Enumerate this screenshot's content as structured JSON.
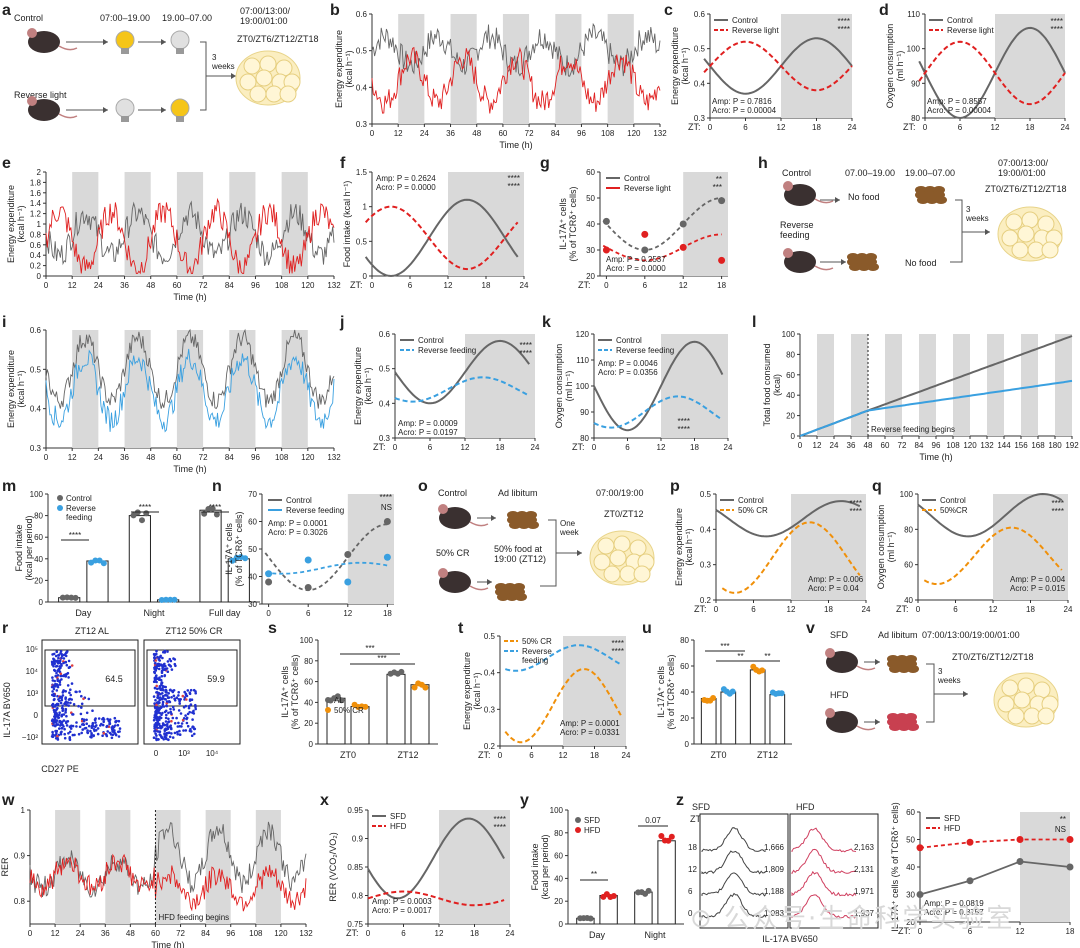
{
  "colors": {
    "gray": "#666666",
    "red": "#e02020",
    "blue": "#3aa0e0",
    "orange": "#f0900a",
    "shade": "#d9d9d9",
    "pink": "#d04060"
  },
  "panels": {
    "a": {
      "label": "a",
      "control": "Control",
      "reverse": "Reverse light",
      "time1": "07:00–19.00",
      "time2": "19.00–07.00",
      "weeks": "3\nweeks",
      "sched": "07:00/13:00/\n19:00/01:00",
      "zt": "ZT0/ZT6/ZT12/ZT18"
    },
    "h": {
      "label": "h",
      "control": "Control",
      "reverse": "Reverse\nfeeding",
      "time1": "07.00–19.00",
      "time2": "19.00–07.00",
      "nofood": "No food",
      "weeks": "3\nweeks",
      "sched": "07:00/13:00/\n19:00/01:00",
      "zt": "ZT0/ZT6/ZT12/ZT18"
    },
    "o": {
      "label": "o",
      "control": "Control",
      "adlib": "Ad libitum",
      "cr": "50% CR",
      "crtext": "50% food at\n19:00 (ZT12)",
      "week": "One\nweek",
      "sched": "07:00/19:00",
      "zt": "ZT0/ZT12"
    },
    "v": {
      "label": "v",
      "sfd": "SFD",
      "hfd": "HFD",
      "adlib": "Ad libitum",
      "weeks": "3\nweeks",
      "sched": "07:00/13:00/19:00/01:00",
      "zt": "ZT0/ZT6/ZT12/ZT18"
    },
    "r": {
      "label": "r",
      "al": "ZT12 AL",
      "cr": "ZT12 50% CR",
      "v1": "64.5",
      "v2": "59.9",
      "ylabel": "IL-17A BV650",
      "xlabel": "CD27 PE"
    },
    "z": {
      "label": "z",
      "sfd": "SFD",
      "hfd": "HFD",
      "zt": "ZT:",
      "rows": [
        "18",
        "12",
        "6",
        "0"
      ],
      "sfdvals": [
        "1,666",
        "1,809",
        "1,188",
        "1,083"
      ],
      "hfdvals": [
        "2,163",
        "2,131",
        "1,971",
        "1,937"
      ],
      "xlabel": "IL-17A BV650"
    }
  },
  "chart_data": [
    {
      "id": "b",
      "type": "line",
      "ylabel": "Energy expenditure\n(kcal h⁻¹)",
      "xlabel": "Time (h)",
      "xlim": [
        0,
        132
      ],
      "ylim": [
        0.3,
        0.6
      ],
      "xticks": [
        0,
        12,
        24,
        36,
        48,
        60,
        72,
        84,
        96,
        108,
        120,
        132
      ],
      "yticks": [
        0.3,
        0.4,
        0.5,
        0.6
      ]
    },
    {
      "id": "c",
      "type": "line",
      "ylabel": "Energy expenditure\n(kcal h⁻¹)",
      "legend": [
        "Control",
        "Reverse light"
      ],
      "stats": "Amp: P = 0.7816\nAcro: P = 0.00004",
      "ylim": [
        0.3,
        0.6
      ],
      "yticks": [
        0.3,
        0.4,
        0.5,
        0.6
      ],
      "xticks": [
        0,
        6,
        12,
        18,
        24
      ]
    },
    {
      "id": "d",
      "type": "line",
      "ylabel": "Oxygen consumption\n(ml h⁻¹)",
      "legend": [
        "Control",
        "Reverse light"
      ],
      "stats": "Amp: P = 0.8557\nAcro: P = 0.00004",
      "ylim": [
        80,
        110
      ],
      "yticks": [
        80,
        90,
        100,
        110
      ],
      "xticks": [
        0,
        6,
        12,
        18,
        24
      ]
    },
    {
      "id": "e",
      "type": "line",
      "ylabel": "Energy expenditure\n(kcal h⁻¹)",
      "xlabel": "Time (h)",
      "xlim": [
        0,
        132
      ],
      "ylim": [
        0,
        2.0
      ],
      "xticks": [
        0,
        12,
        24,
        36,
        48,
        60,
        72,
        84,
        96,
        108,
        120,
        132
      ],
      "yticks": [
        0,
        0.2,
        0.4,
        0.6,
        0.8,
        1.0,
        1.2,
        1.4,
        1.6,
        1.8,
        2.0
      ]
    },
    {
      "id": "f",
      "type": "line",
      "ylabel": "Food intake (kcal h⁻¹)",
      "stats": "Amp: P = 0.2624\nAcro: P = 0.0000",
      "ylim": [
        0,
        1.5
      ],
      "yticks": [
        0,
        0.5,
        1.0,
        1.5
      ],
      "xticks": [
        0,
        6,
        12,
        18,
        24
      ]
    },
    {
      "id": "g",
      "type": "scatter",
      "ylabel": "IL-17A⁺ cells\n(% of TCRδ⁺ cells)",
      "legend": [
        "Control",
        "Reverse light"
      ],
      "stats": "Amp: P = 0.2537\nAcro: P = 0.0000",
      "ylim": [
        20,
        60
      ],
      "yticks": [
        20,
        30,
        40,
        50,
        60
      ],
      "xticks": [
        0,
        6,
        12,
        18
      ],
      "series": [
        {
          "name": "Control",
          "values": [
            41,
            30,
            40,
            49
          ]
        },
        {
          "name": "Reverse light",
          "values": [
            30,
            36,
            31,
            26
          ]
        }
      ]
    },
    {
      "id": "i",
      "type": "line",
      "ylabel": "Energy expenditure\n(kcal h⁻¹)",
      "xlabel": "Time (h)",
      "xlim": [
        0,
        132
      ],
      "ylim": [
        0.3,
        0.6
      ],
      "xticks": [
        0,
        12,
        24,
        36,
        48,
        60,
        72,
        84,
        96,
        108,
        120,
        132
      ],
      "yticks": [
        0.3,
        0.4,
        0.5,
        0.6
      ]
    },
    {
      "id": "j",
      "type": "line",
      "ylabel": "Energy expenditure\n(kcal h⁻¹)",
      "legend": [
        "Control",
        "Reverse feeding"
      ],
      "stats": "Amp: P = 0.0009\nAcro: P = 0.0197",
      "ylim": [
        0.3,
        0.6
      ],
      "yticks": [
        0.3,
        0.4,
        0.5,
        0.6
      ],
      "xticks": [
        0,
        6,
        12,
        18,
        24
      ]
    },
    {
      "id": "k",
      "type": "line",
      "ylabel": "Oxygen consumption\n(ml h⁻¹)",
      "legend": [
        "Control",
        "Reverse feeding"
      ],
      "stats": "Amp: P = 0.0046\nAcro: P = 0.0356",
      "ylim": [
        80,
        120
      ],
      "yticks": [
        80,
        90,
        100,
        110,
        120
      ],
      "xticks": [
        0,
        6,
        12,
        18,
        24
      ]
    },
    {
      "id": "l",
      "type": "line",
      "ylabel": "Total food consumed\n(kcal)",
      "xlabel": "Time (h)",
      "annotation": "Reverse feeding begins",
      "ylim": [
        0,
        100
      ],
      "yticks": [
        0,
        20,
        40,
        60,
        80,
        100
      ],
      "xticks": [
        0,
        12,
        24,
        36,
        48,
        60,
        72,
        84,
        96,
        108,
        120,
        132,
        144,
        156,
        168,
        180,
        192
      ]
    },
    {
      "id": "m",
      "type": "bar",
      "ylabel": "Food intake\n(kcal per period)",
      "legend": [
        "Control",
        "Reverse\nfeeding"
      ],
      "categories": [
        "Day",
        "Night",
        "Full day"
      ],
      "series": [
        {
          "name": "Control",
          "values": [
            4,
            80,
            85
          ]
        },
        {
          "name": "Reverse feeding",
          "values": [
            38,
            2,
            40
          ]
        }
      ],
      "ylim": [
        0,
        100
      ],
      "yticks": [
        0,
        20,
        40,
        60,
        80,
        100
      ],
      "sig": "****"
    },
    {
      "id": "n",
      "type": "scatter",
      "ylabel": "IL-17A⁺ cells\n(% of TCRδ⁺ cells)",
      "legend": [
        "Control",
        "Reverse feeding"
      ],
      "stats": "Amp: P = 0.0001\nAcro: P = 0.3026",
      "ylim": [
        30,
        70
      ],
      "yticks": [
        30,
        40,
        50,
        60,
        70
      ],
      "xticks": [
        0,
        6,
        12,
        18
      ],
      "series": [
        {
          "name": "Control",
          "values": [
            38,
            36,
            48,
            60
          ]
        },
        {
          "name": "Reverse feeding",
          "values": [
            41,
            46,
            38,
            47
          ]
        }
      ]
    },
    {
      "id": "p",
      "type": "line",
      "ylabel": "Energy expenditure\n(kcal h⁻¹)",
      "legend": [
        "Control",
        "50% CR"
      ],
      "stats": "Amp: P = 0.006\nAcro: P = 0.04",
      "ylim": [
        0.2,
        0.5
      ],
      "yticks": [
        0.2,
        0.3,
        0.4,
        0.5
      ],
      "xticks": [
        0,
        6,
        12,
        18,
        24
      ]
    },
    {
      "id": "q",
      "type": "line",
      "ylabel": "Oxygen consumption\n(ml h⁻¹)",
      "legend": [
        "Control",
        "50%CR"
      ],
      "stats": "Amp: P = 0.004\nAcro: P = 0.015",
      "ylim": [
        40,
        100
      ],
      "yticks": [
        40,
        60,
        80,
        100
      ],
      "xticks": [
        0,
        6,
        12,
        18,
        24
      ]
    },
    {
      "id": "s",
      "type": "bar",
      "ylabel": "IL-17A⁺ cells\n(% of TCRδ⁺ cells)",
      "legend": [
        "AL",
        "50% CR"
      ],
      "categories": [
        "ZT0",
        "ZT12"
      ],
      "series": [
        {
          "name": "AL",
          "values": [
            44,
            67
          ]
        },
        {
          "name": "50% CR",
          "values": [
            36,
            57
          ]
        }
      ],
      "ylim": [
        0,
        100
      ],
      "yticks": [
        0,
        20,
        40,
        60,
        80,
        100
      ],
      "sig": "***"
    },
    {
      "id": "t",
      "type": "line",
      "ylabel": "Energy expenditure\n(kcal h⁻¹)",
      "legend": [
        "50% CR",
        "Reverse\nfeeding"
      ],
      "stats": "Amp: P = 0.0001\nAcro: P = 0.0331",
      "ylim": [
        0.2,
        0.5
      ],
      "yticks": [
        0.2,
        0.3,
        0.4,
        0.5
      ],
      "xticks": [
        0,
        6,
        12,
        18,
        24
      ]
    },
    {
      "id": "u",
      "type": "bar",
      "ylabel": "IL-17A⁺ cells\n(% of TCRδ⁺ cells)",
      "categories": [
        "ZT0",
        "ZT12"
      ],
      "series": [
        {
          "name": "Control",
          "values": [
            35,
            57
          ]
        },
        {
          "name": "Reverse feeding",
          "values": [
            40,
            38
          ]
        }
      ],
      "ylim": [
        0,
        80
      ],
      "yticks": [
        0,
        20,
        40,
        60,
        80
      ]
    },
    {
      "id": "w",
      "type": "line",
      "ylabel": "RER",
      "xlabel": "Time (h)",
      "annotation": "HFD feeding begins",
      "ylim": [
        0.75,
        1.0
      ],
      "yticks": [
        0.8,
        0.9,
        1.0
      ],
      "xticks": [
        0,
        12,
        24,
        36,
        48,
        60,
        72,
        84,
        96,
        108,
        120,
        132
      ]
    },
    {
      "id": "x",
      "type": "line",
      "ylabel": "RER (VCO₂/VO₂)",
      "legend": [
        "SFD",
        "HFD"
      ],
      "stats": "Amp: P = 0.0003\nAcro: P = 0.0017",
      "ylim": [
        0.75,
        0.95
      ],
      "yticks": [
        0.75,
        0.8,
        0.85,
        0.9,
        0.95
      ],
      "xticks": [
        0,
        6,
        12,
        18,
        24
      ]
    },
    {
      "id": "y",
      "type": "bar",
      "ylabel": "Food intake\n(kcal per period)",
      "legend": [
        "SFD",
        "HFD"
      ],
      "categories": [
        "Day",
        "Night"
      ],
      "series": [
        {
          "name": "SFD",
          "values": [
            5,
            28
          ]
        },
        {
          "name": "HFD",
          "values": [
            25,
            73
          ]
        }
      ],
      "ylim": [
        0,
        100
      ],
      "yticks": [
        0,
        20,
        40,
        60,
        80,
        100
      ],
      "sig": [
        "**",
        "0.07"
      ]
    },
    {
      "id": "z2",
      "type": "line",
      "ylabel": "IL-17A⁺ cells (% of TCRδ⁺ cells)",
      "legend": [
        "SFD",
        "HFD"
      ],
      "stats": "Amp: P = 0.0819\nAcro: P = 0.8757",
      "ylim": [
        20,
        60
      ],
      "yticks": [
        20,
        30,
        40,
        50,
        60
      ],
      "xticks": [
        0,
        6,
        12,
        18
      ],
      "series": [
        {
          "name": "SFD",
          "values": [
            30,
            35,
            42,
            40
          ]
        },
        {
          "name": "HFD",
          "values": [
            47,
            49,
            50,
            50
          ]
        }
      ]
    }
  ]
}
